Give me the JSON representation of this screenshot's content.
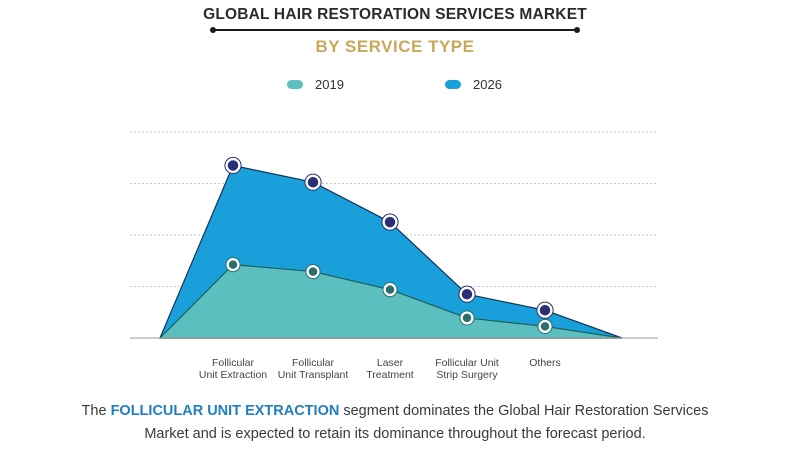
{
  "header": {
    "title": "GLOBAL HAIR RESTORATION SERVICES MARKET",
    "subtitle": "BY SERVICE TYPE"
  },
  "colors": {
    "2019": "#5bbfbf",
    "2026": "#199fd9",
    "marker_2019": "#2a6f6a",
    "marker_2026": "#2b2f73",
    "grid": "#c8c8c8",
    "axis": "#9a9a9a"
  },
  "chart_data": {
    "type": "area",
    "categories": [
      "Follicular\nUnit Extraction",
      "Follicular\nUnit Transplant",
      "Laser\nTreatment",
      "Follicular Unit\nStrip Surgery",
      "Others"
    ],
    "series": [
      {
        "name": "2019",
        "values": [
          28.5,
          25.8,
          18.8,
          7.8,
          4.5
        ]
      },
      {
        "name": "2026",
        "values": [
          67,
          60.5,
          45,
          17,
          10.8
        ]
      }
    ],
    "ylim": [
      0,
      80
    ],
    "grid": true,
    "legend": "top-center",
    "xlabel": "",
    "ylabel": ""
  },
  "footer": {
    "pre": "The ",
    "highlight": "FOLLICULAR UNIT EXTRACTION",
    "post": " segment dominates the Global Hair Restoration Services Market and is expected to retain its dominance throughout the forecast period."
  }
}
